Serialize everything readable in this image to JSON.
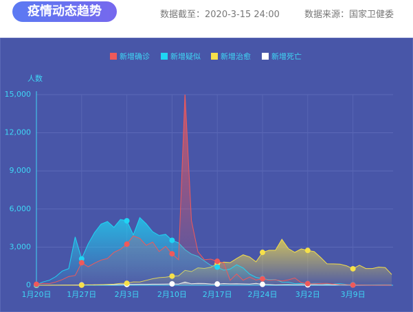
{
  "header": {
    "title": "疫情动态趋势",
    "date": "数据截至：2020-3-15 24:00",
    "source": "数据来源：国家卫健委"
  },
  "chart_data": {
    "type": "line",
    "area": true,
    "y_label": "人数",
    "categories": [
      "1月20日",
      null,
      null,
      null,
      null,
      null,
      null,
      "1月27日",
      null,
      null,
      null,
      null,
      null,
      null,
      "2月3日",
      null,
      null,
      null,
      null,
      null,
      null,
      "2月10日",
      null,
      null,
      null,
      null,
      null,
      null,
      "2月17日",
      null,
      null,
      null,
      null,
      null,
      null,
      "2月24日",
      null,
      null,
      null,
      null,
      null,
      null,
      "3月2日",
      null,
      null,
      null,
      null,
      null,
      null,
      "3月9日",
      null,
      null,
      null,
      null,
      null,
      null
    ],
    "series": [
      {
        "name": "新增确诊",
        "color": "#f0595a",
        "values": [
          77,
          149,
          131,
          259,
          444,
          688,
          769,
          1771,
          1459,
          1737,
          1982,
          2102,
          2590,
          2829,
          3235,
          3887,
          3694,
          3143,
          3399,
          2656,
          3062,
          2478,
          2015,
          15152,
          5090,
          2641,
          2009,
          2048,
          1886,
          1749,
          394,
          889,
          397,
          648,
          409,
          508,
          406,
          433,
          327,
          427,
          573,
          202,
          125,
          119,
          139,
          143,
          99,
          44,
          40,
          19,
          24,
          15,
          8,
          11,
          20,
          16
        ]
      },
      {
        "name": "新增疑似",
        "color": "#1fd5f4",
        "values": [
          27,
          257,
          393,
          680,
          1118,
          1309,
          3806,
          2077,
          3248,
          4148,
          4812,
          5019,
          4562,
          5173,
          5072,
          3971,
          5328,
          4833,
          4214,
          3916,
          4008,
          3536,
          3342,
          2807,
          2450,
          2277,
          1918,
          1563,
          1432,
          1185,
          1277,
          1614,
          1361,
          882,
          620,
          530,
          439,
          452,
          248,
          242,
          132,
          141,
          129,
          143,
          143,
          102,
          110,
          121,
          60,
          36,
          31,
          33,
          33,
          45,
          39,
          41
        ]
      },
      {
        "name": "新增治愈",
        "color": "#f6e04a",
        "values": [
          4,
          0,
          3,
          6,
          3,
          11,
          2,
          9,
          43,
          21,
          47,
          72,
          85,
          147,
          157,
          262,
          261,
          387,
          510,
          600,
          632,
          716,
          744,
          1171,
          1081,
          1373,
          1323,
          1425,
          1701,
          1824,
          1779,
          2109,
          2394,
          2230,
          1846,
          2589,
          2750,
          2750,
          3622,
          2885,
          2589,
          2867,
          2742,
          2652,
          2189,
          1681,
          1678,
          1661,
          1535,
          1297,
          1578,
          1318,
          1318,
          1430,
          1394,
          849
        ]
      },
      {
        "name": "新增死亡",
        "color": "#ffffff",
        "values": [
          0,
          3,
          8,
          8,
          16,
          15,
          24,
          26,
          26,
          38,
          43,
          46,
          45,
          57,
          64,
          65,
          73,
          73,
          86,
          89,
          97,
          108,
          97,
          254,
          121,
          143,
          142,
          105,
          98,
          136,
          114,
          118,
          109,
          97,
          150,
          71,
          52,
          29,
          44,
          47,
          35,
          42,
          31,
          38,
          31,
          30,
          28,
          27,
          22,
          17,
          22,
          11,
          7,
          13,
          10,
          14
        ]
      }
    ],
    "ylim": [
      0,
      15000
    ],
    "yticks": [
      0,
      {
        "value": 3000,
        "label": "3,000"
      },
      {
        "value": 6000,
        "label": "6,000"
      },
      {
        "value": 9000,
        "label": "9,000"
      },
      {
        "value": 12000,
        "label": "12,000"
      },
      {
        "value": 15000,
        "label": "15,000"
      }
    ],
    "grid": true
  }
}
